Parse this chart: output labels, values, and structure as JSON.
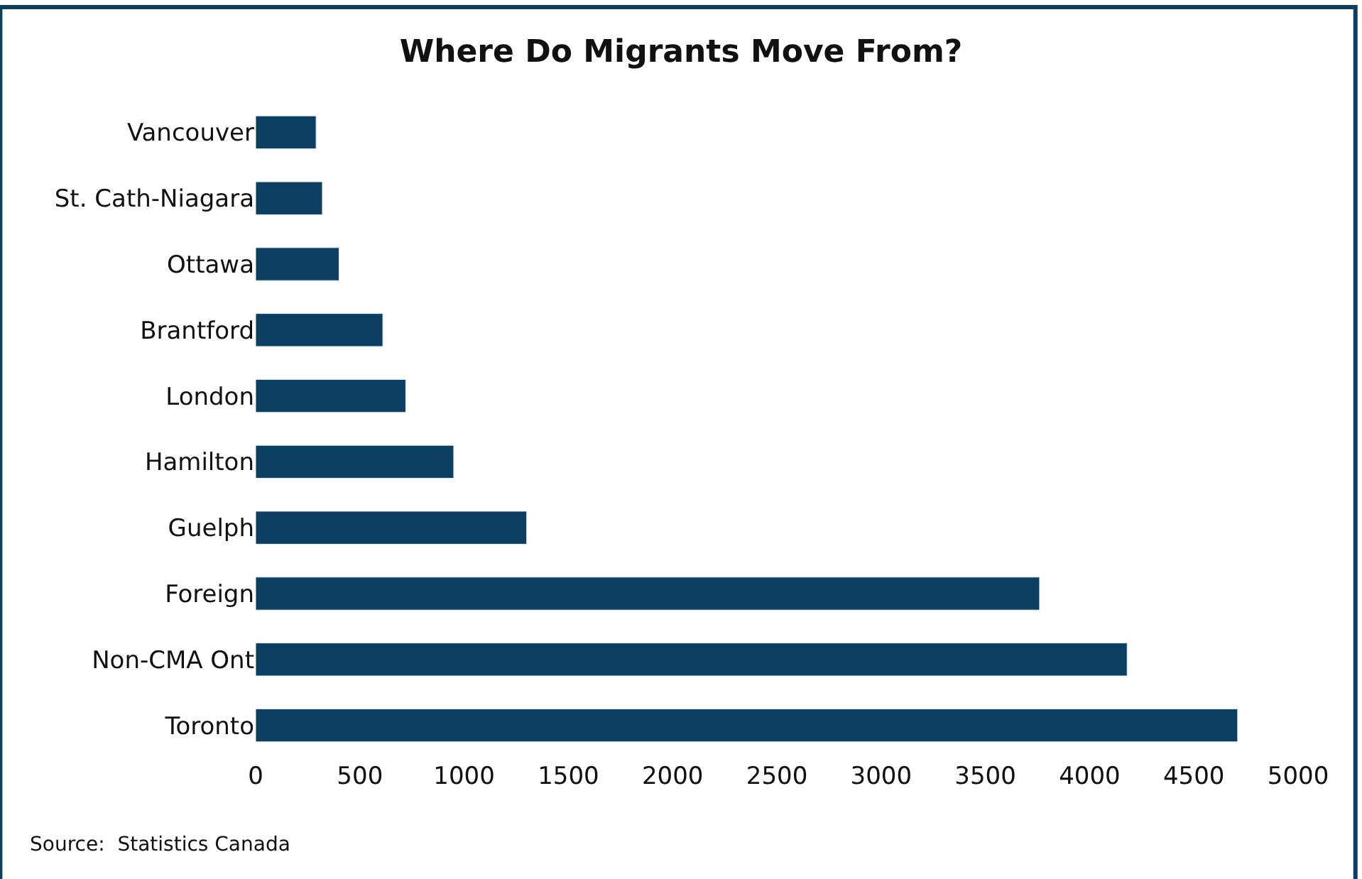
{
  "chart_data": {
    "type": "bar",
    "orientation": "horizontal",
    "title": "Where Do Migrants Move From?",
    "categories": [
      "Vancouver",
      "St. Cath-Niagara",
      "Ottawa",
      "Brantford",
      "London",
      "Hamilton",
      "Guelph",
      "Foreign",
      "Non-CMA Ont",
      "Toronto"
    ],
    "values": [
      290,
      320,
      400,
      610,
      720,
      950,
      1300,
      3760,
      4180,
      4710
    ],
    "color": "#0a3f62",
    "xlim": [
      0,
      5000
    ],
    "xticks": [
      0,
      500,
      1000,
      1500,
      2000,
      2500,
      3000,
      3500,
      4000,
      4500,
      5000
    ],
    "annotations": [
      "Source:  Statistics Canada"
    ]
  }
}
